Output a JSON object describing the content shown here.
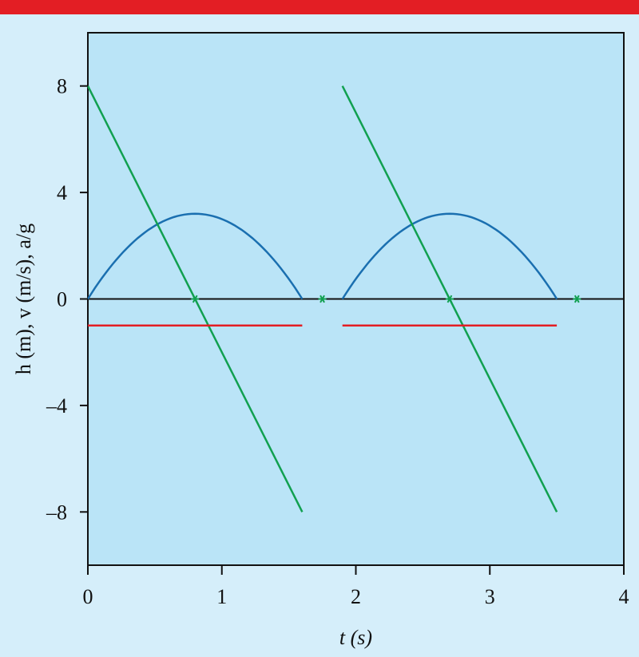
{
  "chart_data": {
    "type": "line",
    "xlabel": "t (s)",
    "ylabel": "h (m), v (m/s), a/g",
    "xlim": [
      0,
      4
    ],
    "ylim": [
      -10,
      10
    ],
    "xticks": [
      "0",
      "1",
      "2",
      "3",
      "4"
    ],
    "yticks": [
      "8",
      "4",
      "0",
      "–4",
      "–8"
    ],
    "xtick_values": [
      0,
      1,
      2,
      3,
      4
    ],
    "ytick_values": [
      8,
      4,
      0,
      -4,
      -8
    ],
    "grid": false,
    "series": [
      {
        "color": "#1a6fb0",
        "segments": [
          {
            "x": [
              0,
              0.2,
              0.4,
              0.6,
              0.8,
              1.0,
              1.2,
              1.4,
              1.6
            ],
            "y": [
              0,
              1.4,
              2.4,
              3.0,
              3.2,
              3.0,
              2.4,
              1.4,
              0
            ]
          },
          {
            "x": [
              1.9,
              2.1,
              2.3,
              2.5,
              2.7,
              2.9,
              3.1,
              3.3,
              3.5
            ],
            "y": [
              0,
              1.4,
              2.4,
              3.0,
              3.2,
              3.0,
              2.4,
              1.4,
              0
            ]
          }
        ]
      },
      {
        "color": "#11a050",
        "segments": [
          {
            "x": [
              0,
              1.6
            ],
            "y": [
              8,
              -8
            ]
          },
          {
            "x": [
              1.9,
              3.5
            ],
            "y": [
              8,
              -8
            ]
          }
        ]
      },
      {
        "color": "#e31e24",
        "segments": [
          {
            "x": [
              0,
              1.6
            ],
            "y": [
              -1,
              -1
            ]
          },
          {
            "x": [
              1.9,
              3.5
            ],
            "y": [
              -1,
              -1
            ]
          }
        ]
      }
    ],
    "markers": {
      "color": "#11a050",
      "x": [
        0.8,
        1.75,
        2.7,
        3.65
      ],
      "y": [
        0,
        0,
        0,
        0
      ]
    }
  }
}
